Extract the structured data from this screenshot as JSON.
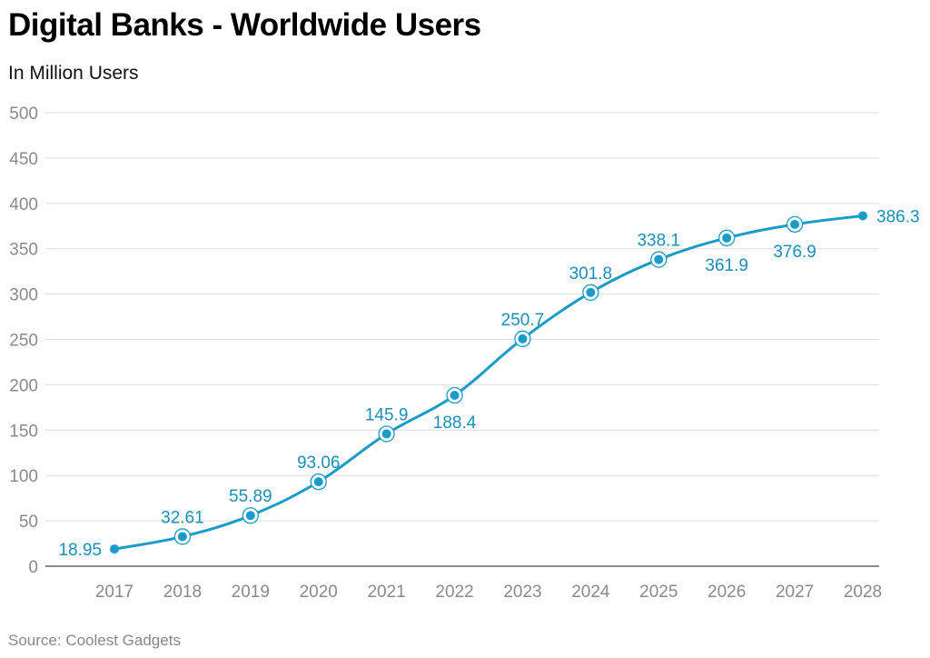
{
  "header": {
    "title": "Digital Banks - Worldwide Users",
    "subtitle": "In Million Users"
  },
  "footer": {
    "source": "Source: Coolest Gadgets"
  },
  "colors": {
    "line": "#1a9bc8",
    "label": "#1a8fb8",
    "grid": "#dddddd",
    "tick": "#8a8a8a"
  },
  "chart_data": {
    "type": "line",
    "title": "Digital Banks - Worldwide Users",
    "subtitle": "In Million Users",
    "xlabel": "",
    "ylabel": "",
    "ylim": [
      0,
      500
    ],
    "yticks": [
      0,
      50,
      100,
      150,
      200,
      250,
      300,
      350,
      400,
      450,
      500
    ],
    "grid": true,
    "categories": [
      "2017",
      "2018",
      "2019",
      "2020",
      "2021",
      "2022",
      "2023",
      "2024",
      "2025",
      "2026",
      "2027",
      "2028"
    ],
    "series": [
      {
        "name": "Users",
        "values": [
          18.95,
          32.61,
          55.89,
          93.06,
          145.9,
          188.4,
          250.7,
          301.8,
          338.1,
          361.9,
          376.9,
          386.3
        ],
        "labels": [
          "18.95",
          "32.61",
          "55.89",
          "93.06",
          "145.9",
          "188.4",
          "250.7",
          "301.8",
          "338.1",
          "361.9",
          "376.9",
          "386.3"
        ]
      }
    ]
  }
}
